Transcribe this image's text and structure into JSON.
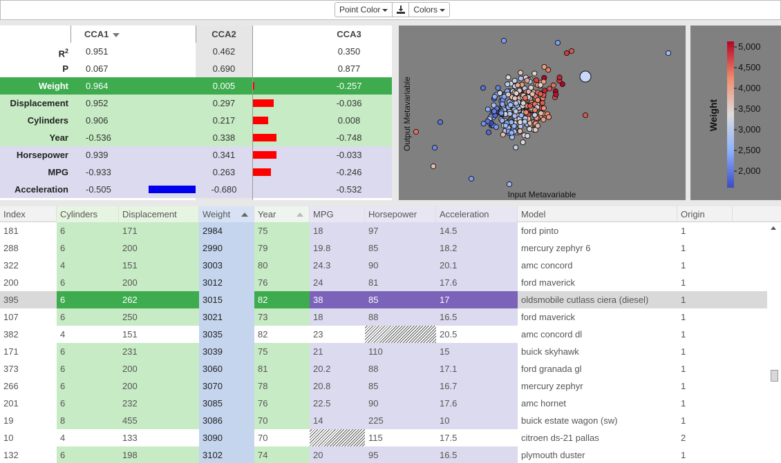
{
  "toolbar": {
    "point_color_label": "Point Color",
    "colors_label": "Colors",
    "download_icon": "download-icon"
  },
  "cca": {
    "headers": [
      "CCA1",
      "CCA2",
      "CCA3"
    ],
    "r2_label": "R",
    "r2_sup": "2",
    "rows": [
      {
        "label": "",
        "v1": "0.951",
        "v2": "0.462",
        "v3": "0.350",
        "style": "plain",
        "bar": 0,
        "bar_color": "none"
      },
      {
        "label": "P",
        "v1": "0.067",
        "v2": "0.690",
        "v3": "0.877",
        "style": "plain",
        "bar": 0,
        "bar_color": "none"
      },
      {
        "label": "Weight",
        "v1": "0.964",
        "v2": "0.005",
        "v3": "-0.257",
        "style": "selected",
        "bar": 0.005,
        "bar_color": "red"
      },
      {
        "label": "Displacement",
        "v1": "0.952",
        "v2": "0.297",
        "v3": "-0.036",
        "style": "green",
        "bar": 0.297,
        "bar_color": "red"
      },
      {
        "label": "Cylinders",
        "v1": "0.906",
        "v2": "0.217",
        "v3": "0.008",
        "style": "green",
        "bar": 0.217,
        "bar_color": "red"
      },
      {
        "label": "Year",
        "v1": "-0.536",
        "v2": "0.338",
        "v3": "-0.748",
        "style": "green",
        "bar": 0.338,
        "bar_color": "red"
      },
      {
        "label": "Horsepower",
        "v1": "0.939",
        "v2": "0.341",
        "v3": "-0.033",
        "style": "purple",
        "bar": 0.341,
        "bar_color": "red"
      },
      {
        "label": "MPG",
        "v1": "-0.933",
        "v2": "0.263",
        "v3": "-0.246",
        "style": "purple",
        "bar": 0.263,
        "bar_color": "red"
      },
      {
        "label": "Acceleration",
        "v1": "-0.505",
        "v2": "-0.680",
        "v3": "-0.532",
        "style": "purple",
        "bar": 0.68,
        "bar_color": "blue"
      }
    ]
  },
  "scatter": {
    "xlabel": "Input Metavariable",
    "ylabel": "Output Metavariable"
  },
  "legend": {
    "title": "Weight",
    "ticks": [
      "5,000",
      "4,500",
      "4,000",
      "3,500",
      "3,000",
      "2,500",
      "2,000"
    ],
    "colors": {
      "high": "#b40426",
      "mid": "#dddddd",
      "low": "#3b4cc0"
    }
  },
  "grid": {
    "columns": [
      "Index",
      "Cylinders",
      "Displacement",
      "Weight",
      "Year",
      "MPG",
      "Horsepower",
      "Acceleration",
      "Model",
      "Origin"
    ],
    "rows": [
      {
        "cells": [
          "181",
          "6",
          "171",
          "2984",
          "75",
          "18",
          "97",
          "14.5",
          "ford pinto",
          "1"
        ],
        "selected": false,
        "hatch": []
      },
      {
        "cells": [
          "288",
          "6",
          "200",
          "2990",
          "79",
          "19.8",
          "85",
          "18.2",
          "mercury zephyr 6",
          "1"
        ],
        "selected": false,
        "hatch": []
      },
      {
        "cells": [
          "322",
          "4",
          "151",
          "3003",
          "80",
          "24.3",
          "90",
          "20.1",
          "amc concord",
          "1"
        ],
        "selected": false,
        "hatch": []
      },
      {
        "cells": [
          "200",
          "6",
          "200",
          "3012",
          "76",
          "24",
          "81",
          "17.6",
          "ford maverick",
          "1"
        ],
        "selected": false,
        "hatch": []
      },
      {
        "cells": [
          "395",
          "6",
          "262",
          "3015",
          "82",
          "38",
          "85",
          "17",
          "oldsmobile cutlass ciera (diesel)",
          "1"
        ],
        "selected": true,
        "hatch": []
      },
      {
        "cells": [
          "107",
          "6",
          "250",
          "3021",
          "73",
          "18",
          "88",
          "16.5",
          "ford maverick",
          "1"
        ],
        "selected": false,
        "hatch": []
      },
      {
        "cells": [
          "382",
          "4",
          "151",
          "3035",
          "82",
          "23",
          "",
          "20.5",
          "amc concord dl",
          "1"
        ],
        "selected": false,
        "hatch": [
          6
        ],
        "plain": true
      },
      {
        "cells": [
          "171",
          "6",
          "231",
          "3039",
          "75",
          "21",
          "110",
          "15",
          "buick skyhawk",
          "1"
        ],
        "selected": false,
        "hatch": []
      },
      {
        "cells": [
          "373",
          "6",
          "200",
          "3060",
          "81",
          "20.2",
          "88",
          "17.1",
          "ford granada gl",
          "1"
        ],
        "selected": false,
        "hatch": []
      },
      {
        "cells": [
          "266",
          "6",
          "200",
          "3070",
          "78",
          "20.8",
          "85",
          "16.7",
          "mercury zephyr",
          "1"
        ],
        "selected": false,
        "hatch": []
      },
      {
        "cells": [
          "201",
          "6",
          "232",
          "3085",
          "76",
          "22.5",
          "90",
          "17.6",
          "amc hornet",
          "1"
        ],
        "selected": false,
        "hatch": []
      },
      {
        "cells": [
          "19",
          "8",
          "455",
          "3086",
          "70",
          "14",
          "225",
          "10",
          "buick estate wagon (sw)",
          "1"
        ],
        "selected": false,
        "hatch": []
      },
      {
        "cells": [
          "10",
          "4",
          "133",
          "3090",
          "70",
          "",
          "115",
          "17.5",
          "citroen ds-21 pallas",
          "2"
        ],
        "selected": false,
        "hatch": [
          5
        ],
        "plain": true
      },
      {
        "cells": [
          "132",
          "6",
          "198",
          "3102",
          "74",
          "20",
          "95",
          "16.5",
          "plymouth duster",
          "1"
        ],
        "selected": false,
        "hatch": []
      }
    ]
  }
}
